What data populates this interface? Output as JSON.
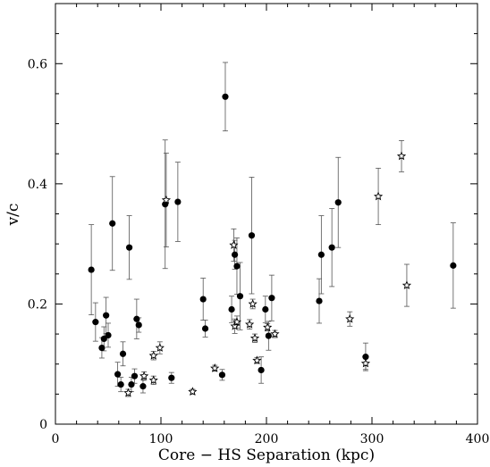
{
  "chart_data": {
    "type": "scatter",
    "xlabel": "Core − HS Separation (kpc)",
    "ylabel": "v/c",
    "xlim": [
      0,
      400
    ],
    "ylim": [
      0,
      0.7
    ],
    "x_ticks": [
      0,
      100,
      200,
      300,
      400
    ],
    "x_tick_labels": [
      "0",
      "100",
      "200",
      "300",
      "400"
    ],
    "y_ticks": [
      0,
      0.2,
      0.4,
      0.6
    ],
    "y_tick_labels": [
      "0",
      "0.2",
      "0.4",
      "0.6"
    ],
    "grid": false,
    "series": [
      {
        "marker": "filled-circle",
        "color": "#000000",
        "points": [
          {
            "x": 34,
            "y": 0.257,
            "err": 0.075
          },
          {
            "x": 38,
            "y": 0.17,
            "err": 0.032
          },
          {
            "x": 44,
            "y": 0.127,
            "err": 0.017
          },
          {
            "x": 46,
            "y": 0.142,
            "err": 0.02
          },
          {
            "x": 48,
            "y": 0.181,
            "err": 0.03
          },
          {
            "x": 50,
            "y": 0.148,
            "err": 0.02
          },
          {
            "x": 54,
            "y": 0.334,
            "err": 0.078
          },
          {
            "x": 59,
            "y": 0.083,
            "err": 0.02
          },
          {
            "x": 62,
            "y": 0.066,
            "err": 0.012
          },
          {
            "x": 64,
            "y": 0.117,
            "err": 0.02
          },
          {
            "x": 70,
            "y": 0.294,
            "err": 0.053
          },
          {
            "x": 72,
            "y": 0.066,
            "err": 0.012
          },
          {
            "x": 75,
            "y": 0.08,
            "err": 0.012
          },
          {
            "x": 77,
            "y": 0.175,
            "err": 0.033
          },
          {
            "x": 79,
            "y": 0.165,
            "err": 0.012
          },
          {
            "x": 83,
            "y": 0.063,
            "err": 0.011
          },
          {
            "x": 104,
            "y": 0.366,
            "err": 0.107
          },
          {
            "x": 110,
            "y": 0.077,
            "err": 0.009
          },
          {
            "x": 116,
            "y": 0.37,
            "err": 0.066
          },
          {
            "x": 140,
            "y": 0.208,
            "err": 0.035
          },
          {
            "x": 142,
            "y": 0.159,
            "err": 0.014
          },
          {
            "x": 158,
            "y": 0.082,
            "err": 0.009
          },
          {
            "x": 161,
            "y": 0.545,
            "err": 0.057
          },
          {
            "x": 167,
            "y": 0.191,
            "err": 0.022
          },
          {
            "x": 170,
            "y": 0.282,
            "err": 0.024
          },
          {
            "x": 172,
            "y": 0.263,
            "err": 0.047
          },
          {
            "x": 175,
            "y": 0.213,
            "err": 0.056
          },
          {
            "x": 186,
            "y": 0.314,
            "err": 0.097
          },
          {
            "x": 195,
            "y": 0.09,
            "err": 0.022
          },
          {
            "x": 199,
            "y": 0.191,
            "err": 0.022
          },
          {
            "x": 202,
            "y": 0.147,
            "err": 0.024
          },
          {
            "x": 205,
            "y": 0.21,
            "err": 0.038
          },
          {
            "x": 250,
            "y": 0.205,
            "err": 0.037
          },
          {
            "x": 252,
            "y": 0.282,
            "err": 0.065
          },
          {
            "x": 262,
            "y": 0.294,
            "err": 0.065
          },
          {
            "x": 268,
            "y": 0.369,
            "err": 0.075
          },
          {
            "x": 294,
            "y": 0.112,
            "err": 0.023
          },
          {
            "x": 377,
            "y": 0.264,
            "err": 0.071
          }
        ]
      },
      {
        "marker": "open-star",
        "color": "#000000",
        "points": [
          {
            "x": 69,
            "y": 0.052,
            "err": 0.006
          },
          {
            "x": 84,
            "y": 0.08,
            "err": 0.007
          },
          {
            "x": 93,
            "y": 0.073,
            "err": 0.007
          },
          {
            "x": 93,
            "y": 0.114,
            "err": 0.007
          },
          {
            "x": 99,
            "y": 0.127,
            "err": 0.01
          },
          {
            "x": 105,
            "y": 0.373,
            "err": 0.078
          },
          {
            "x": 130,
            "y": 0.054,
            "err": 0.004
          },
          {
            "x": 151,
            "y": 0.093,
            "err": 0.005
          },
          {
            "x": 169,
            "y": 0.298,
            "err": 0.027
          },
          {
            "x": 170,
            "y": 0.163,
            "err": 0.012
          },
          {
            "x": 172,
            "y": 0.17,
            "err": 0.01
          },
          {
            "x": 184,
            "y": 0.166,
            "err": 0.008
          },
          {
            "x": 187,
            "y": 0.2,
            "err": 0.008
          },
          {
            "x": 189,
            "y": 0.143,
            "err": 0.007
          },
          {
            "x": 191,
            "y": 0.106,
            "err": 0.005
          },
          {
            "x": 201,
            "y": 0.161,
            "err": 0.006
          },
          {
            "x": 208,
            "y": 0.15,
            "err": 0.006
          },
          {
            "x": 279,
            "y": 0.175,
            "err": 0.012
          },
          {
            "x": 294,
            "y": 0.101,
            "err": 0.01
          },
          {
            "x": 306,
            "y": 0.379,
            "err": 0.047
          },
          {
            "x": 328,
            "y": 0.446,
            "err": 0.026
          },
          {
            "x": 333,
            "y": 0.231,
            "err": 0.035
          }
        ]
      }
    ]
  }
}
